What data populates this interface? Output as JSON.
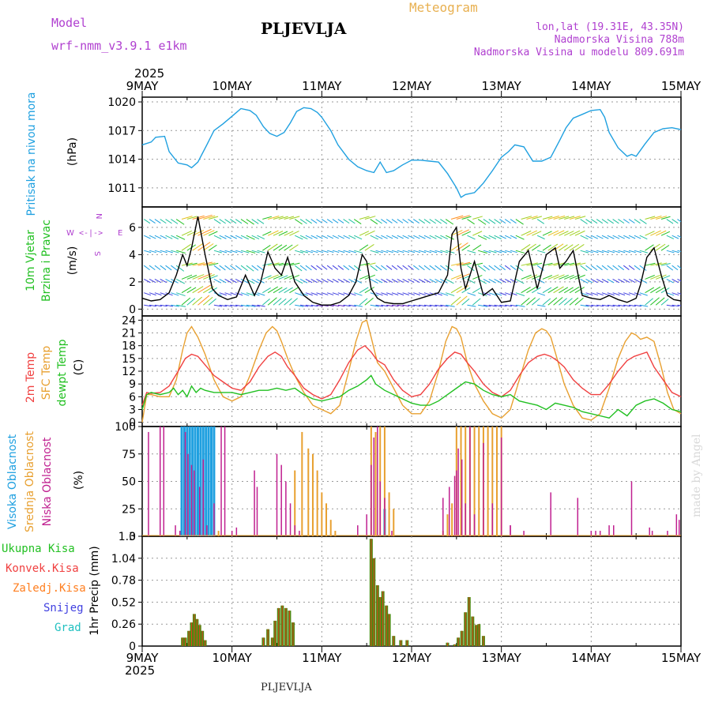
{
  "header": {
    "model_label": "Model",
    "model_name": "wrf-nmm_v3.9.1 e1km",
    "station": "PLJEVLJA",
    "meteogram": "Meteogram",
    "lonlat": "lon,lat (19.31E, 43.35N)",
    "altitude": "Nadmorska Visina 788m",
    "model_altitude": "Nadmorska Visina u modelu 809.691m",
    "year_top": "2025",
    "year_bottom": "2025",
    "footer_station": "PLJEVLJA",
    "credit": "made by Angel"
  },
  "colors": {
    "pressure": "#1fa0e0",
    "wind_label": "#22c022",
    "compass": "#b040d0",
    "temp2m": "#f04040",
    "sfc": "#e8a030",
    "dew": "#22c022",
    "cloud_high": "#1fa0e0",
    "cloud_mid": "#e8a030",
    "cloud_low": "#c02090",
    "precip_total": "#22c022",
    "precip_conv": "#f04040",
    "precip_frz": "#ff7f20",
    "precip_snow": "#4040e0",
    "precip_grad": "#20c0c0",
    "header_purple": "#b040d0",
    "header_orange": "#e8b050"
  },
  "x_axis": {
    "tick_labels": [
      "9MAY",
      "10MAY",
      "11MAY",
      "12MAY",
      "13MAY",
      "14MAY",
      "15MAY"
    ],
    "range_days": [
      0,
      6
    ]
  },
  "panels": {
    "pressure": {
      "title": "Pritisak na nivou mora",
      "unit": "(hPa)",
      "yticks": [
        "1011",
        "1014",
        "1017",
        "1020"
      ]
    },
    "wind": {
      "title1": "10m Vjetar",
      "title2": "Brzina i Pravac",
      "unit": "(m/s)",
      "yticks": [
        "0",
        "2",
        "4",
        "6"
      ],
      "compass_w": "W",
      "compass_e": "E",
      "compass_n": "N",
      "compass_s": "S",
      "compass_arrows": "<-|->"
    },
    "temp": {
      "label_2m": "2m Temp",
      "label_sfc": "SFC Temp",
      "label_dew": "dewpt Temp",
      "unit": "(C)",
      "yticks": [
        "0",
        "3",
        "6",
        "9",
        "12",
        "15",
        "18",
        "21",
        "24"
      ]
    },
    "cloud": {
      "label_high": "Visoka Oblacnost",
      "label_mid": "Srednja Oblacnost",
      "label_low": "Niska Oblacnost",
      "unit": "(%)",
      "yticks": [
        "0",
        "25",
        "50",
        "75",
        "100"
      ]
    },
    "precip": {
      "label_total": "Ukupna Kisa",
      "label_conv": "Konvek.Kisa",
      "label_frz": "Zaledj.Kisa",
      "label_snow": "Snijeg",
      "label_grad": "Grad",
      "unit": "1hr Precip (mm)",
      "yticks": [
        "0",
        "0.26",
        "0.52",
        "0.78",
        "1.04",
        "1.3"
      ]
    }
  },
  "chart_data": [
    {
      "type": "line",
      "name": "pressure",
      "ylim": [
        1009,
        1020.5
      ],
      "x": [
        0,
        0.1,
        0.15,
        0.25,
        0.3,
        0.4,
        0.5,
        0.55,
        0.62,
        0.72,
        0.8,
        0.9,
        1.0,
        1.1,
        1.2,
        1.27,
        1.35,
        1.42,
        1.5,
        1.58,
        1.65,
        1.72,
        1.8,
        1.88,
        1.95,
        2.0,
        2.1,
        2.18,
        2.3,
        2.4,
        2.5,
        2.58,
        2.65,
        2.72,
        2.8,
        2.9,
        3.0,
        3.1,
        3.2,
        3.3,
        3.4,
        3.5,
        3.55,
        3.6,
        3.7,
        3.8,
        3.9,
        4.0,
        4.08,
        4.15,
        4.25,
        4.35,
        4.45,
        4.55,
        4.65,
        4.72,
        4.8,
        4.9,
        5.0,
        5.1,
        5.15,
        5.2,
        5.3,
        5.4,
        5.45,
        5.5,
        5.6,
        5.7,
        5.8,
        5.9,
        6.0
      ],
      "values": [
        1015.5,
        1015.8,
        1016.3,
        1016.4,
        1014.8,
        1013.6,
        1013.4,
        1013.1,
        1013.7,
        1015.5,
        1017.0,
        1017.7,
        1018.5,
        1019.3,
        1019.1,
        1018.6,
        1017.4,
        1016.7,
        1016.4,
        1016.8,
        1017.8,
        1019.0,
        1019.4,
        1019.3,
        1018.9,
        1018.4,
        1017.0,
        1015.5,
        1014.0,
        1013.2,
        1012.8,
        1012.6,
        1013.7,
        1012.6,
        1012.8,
        1013.4,
        1013.9,
        1013.9,
        1013.8,
        1013.7,
        1012.5,
        1011.0,
        1010.0,
        1010.3,
        1010.5,
        1011.5,
        1012.8,
        1014.2,
        1014.8,
        1015.5,
        1015.3,
        1013.8,
        1013.8,
        1014.2,
        1016.0,
        1017.3,
        1018.3,
        1018.7,
        1019.1,
        1019.2,
        1018.4,
        1016.8,
        1015.2,
        1014.3,
        1014.5,
        1014.3,
        1015.6,
        1016.8,
        1017.2,
        1017.3,
        1017.1
      ]
    },
    {
      "type": "line",
      "name": "wind",
      "ylim": [
        -0.5,
        7.5
      ],
      "x": [
        0,
        0.1,
        0.2,
        0.3,
        0.38,
        0.45,
        0.5,
        0.55,
        0.62,
        0.7,
        0.78,
        0.85,
        0.95,
        1.05,
        1.15,
        1.25,
        1.32,
        1.4,
        1.48,
        1.55,
        1.62,
        1.7,
        1.8,
        1.9,
        2.0,
        2.1,
        2.2,
        2.3,
        2.38,
        2.45,
        2.5,
        2.55,
        2.62,
        2.7,
        2.8,
        2.9,
        3.0,
        3.1,
        3.2,
        3.3,
        3.4,
        3.45,
        3.5,
        3.55,
        3.6,
        3.7,
        3.8,
        3.9,
        4.0,
        4.1,
        4.2,
        4.3,
        4.4,
        4.5,
        4.6,
        4.65,
        4.72,
        4.8,
        4.9,
        5.0,
        5.1,
        5.2,
        5.3,
        5.4,
        5.5,
        5.55,
        5.62,
        5.7,
        5.78,
        5.85,
        5.92,
        6.0
      ],
      "values": [
        0.8,
        0.6,
        0.7,
        1.2,
        2.5,
        4.0,
        3.2,
        4.5,
        6.8,
        4.0,
        1.5,
        1.0,
        0.7,
        0.9,
        2.5,
        1.0,
        2.0,
        4.2,
        3.0,
        2.5,
        3.8,
        2.0,
        1.0,
        0.5,
        0.3,
        0.3,
        0.5,
        1.0,
        2.0,
        4.0,
        3.5,
        1.5,
        0.8,
        0.5,
        0.4,
        0.4,
        0.6,
        0.8,
        1.0,
        1.2,
        2.5,
        5.5,
        6.0,
        3.0,
        1.5,
        3.5,
        1.0,
        1.5,
        0.5,
        0.6,
        3.5,
        4.3,
        1.5,
        4.0,
        4.5,
        3.0,
        3.5,
        4.3,
        1.0,
        0.8,
        0.7,
        1.0,
        0.7,
        0.5,
        0.8,
        1.8,
        3.8,
        4.5,
        2.5,
        1.0,
        0.7,
        0.6
      ]
    },
    {
      "type": "line",
      "name": "2m Temp",
      "ylim": [
        -1,
        25
      ],
      "x": [
        0,
        0.05,
        0.1,
        0.2,
        0.3,
        0.4,
        0.48,
        0.55,
        0.62,
        0.7,
        0.8,
        0.9,
        1.0,
        1.1,
        1.2,
        1.3,
        1.4,
        1.48,
        1.55,
        1.62,
        1.7,
        1.8,
        1.9,
        2.0,
        2.1,
        2.2,
        2.3,
        2.4,
        2.48,
        2.55,
        2.62,
        2.7,
        2.8,
        2.9,
        3.0,
        3.1,
        3.2,
        3.3,
        3.4,
        3.48,
        3.55,
        3.62,
        3.7,
        3.8,
        3.9,
        4.0,
        4.1,
        4.2,
        4.3,
        4.4,
        4.48,
        4.55,
        4.62,
        4.7,
        4.8,
        4.9,
        5.0,
        5.1,
        5.2,
        5.3,
        5.4,
        5.48,
        5.55,
        5.62,
        5.7,
        5.8,
        5.9,
        6.0
      ],
      "values": [
        4.0,
        7.0,
        6.8,
        7.0,
        8.5,
        12.0,
        15.0,
        16.0,
        15.5,
        13.5,
        11.0,
        9.5,
        8.0,
        7.5,
        9.5,
        13.0,
        15.5,
        16.5,
        15.5,
        13.0,
        11.0,
        8.0,
        6.5,
        5.5,
        6.5,
        10.0,
        14.0,
        17.0,
        18.0,
        16.5,
        14.5,
        13.5,
        10.0,
        7.5,
        6.0,
        6.5,
        9.0,
        12.5,
        15.0,
        16.5,
        16.0,
        14.0,
        12.0,
        9.0,
        7.0,
        6.0,
        7.5,
        11.0,
        14.0,
        15.5,
        16.0,
        15.5,
        14.5,
        13.0,
        10.0,
        8.0,
        6.5,
        6.5,
        9.0,
        12.0,
        14.5,
        15.5,
        16.0,
        16.5,
        13.0,
        10.0,
        7.0,
        6.0
      ]
    },
    {
      "type": "line",
      "name": "SFC Temp",
      "ylim": [
        -1,
        25
      ],
      "x": [
        0,
        0.05,
        0.1,
        0.2,
        0.3,
        0.38,
        0.45,
        0.5,
        0.55,
        0.62,
        0.7,
        0.8,
        0.9,
        1.0,
        1.1,
        1.2,
        1.3,
        1.38,
        1.45,
        1.5,
        1.55,
        1.62,
        1.7,
        1.8,
        1.9,
        2.0,
        2.1,
        2.2,
        2.3,
        2.38,
        2.45,
        2.5,
        2.55,
        2.62,
        2.7,
        2.8,
        2.9,
        3.0,
        3.1,
        3.2,
        3.3,
        3.38,
        3.45,
        3.5,
        3.55,
        3.62,
        3.7,
        3.8,
        3.9,
        4.0,
        4.1,
        4.2,
        4.3,
        4.38,
        4.45,
        4.5,
        4.55,
        4.62,
        4.7,
        4.8,
        4.9,
        5.0,
        5.1,
        5.2,
        5.3,
        5.38,
        5.45,
        5.5,
        5.55,
        5.62,
        5.7,
        5.78,
        5.85,
        5.92,
        6.0
      ],
      "values": [
        0.0,
        6.5,
        6.5,
        6.0,
        6.0,
        10.0,
        17.0,
        21.0,
        22.5,
        20.0,
        16.0,
        10.0,
        6.0,
        5.0,
        6.0,
        11.0,
        17.0,
        21.0,
        22.5,
        21.5,
        19.0,
        15.0,
        11.0,
        7.0,
        4.0,
        3.0,
        2.0,
        4.0,
        12.0,
        19.0,
        23.5,
        24.0,
        20.0,
        14.0,
        12.0,
        8.0,
        4.0,
        2.0,
        2.0,
        5.0,
        12.0,
        19.0,
        22.5,
        22.0,
        20.0,
        14.0,
        9.0,
        5.0,
        2.0,
        1.0,
        3.0,
        10.0,
        17.0,
        21.0,
        22.0,
        21.5,
        20.0,
        15.0,
        9.0,
        4.0,
        1.0,
        0.5,
        2.0,
        8.0,
        15.0,
        19.0,
        21.0,
        20.5,
        19.5,
        20.0,
        19.0,
        13.0,
        7.0,
        3.0,
        2.0
      ]
    },
    {
      "type": "line",
      "name": "dewpt Temp",
      "ylim": [
        -1,
        25
      ],
      "x": [
        0,
        0.05,
        0.1,
        0.2,
        0.3,
        0.35,
        0.4,
        0.45,
        0.5,
        0.55,
        0.6,
        0.65,
        0.7,
        0.8,
        0.9,
        1.0,
        1.1,
        1.2,
        1.3,
        1.4,
        1.5,
        1.6,
        1.7,
        1.8,
        1.9,
        2.0,
        2.1,
        2.2,
        2.3,
        2.4,
        2.5,
        2.55,
        2.6,
        2.7,
        2.8,
        2.9,
        3.0,
        3.1,
        3.2,
        3.3,
        3.4,
        3.5,
        3.6,
        3.7,
        3.8,
        3.9,
        4.0,
        4.1,
        4.2,
        4.3,
        4.4,
        4.5,
        4.6,
        4.7,
        4.8,
        4.9,
        5.0,
        5.1,
        5.2,
        5.3,
        5.4,
        5.5,
        5.6,
        5.7,
        5.8,
        5.9,
        6.0
      ],
      "values": [
        3.0,
        6.5,
        7.0,
        6.5,
        7.0,
        8.0,
        6.5,
        7.5,
        6.0,
        8.5,
        7.0,
        8.0,
        7.5,
        7.0,
        7.0,
        7.0,
        6.5,
        7.0,
        7.5,
        7.5,
        8.0,
        7.5,
        8.0,
        6.5,
        5.5,
        5.0,
        5.5,
        6.0,
        7.5,
        8.5,
        10.0,
        11.0,
        9.0,
        7.5,
        6.5,
        5.5,
        4.5,
        4.0,
        4.0,
        5.0,
        6.5,
        8.0,
        9.5,
        9.0,
        7.5,
        6.5,
        6.0,
        6.5,
        5.0,
        4.5,
        4.0,
        3.0,
        4.5,
        4.0,
        3.5,
        2.5,
        2.0,
        1.5,
        1.0,
        3.0,
        1.5,
        4.0,
        5.0,
        5.5,
        4.5,
        3.0,
        2.5
      ]
    },
    {
      "type": "bar",
      "name": "cloud",
      "ylim": [
        0,
        100
      ],
      "low_x": [
        0.07,
        0.2,
        0.24,
        0.37,
        0.42,
        0.48,
        0.51,
        0.55,
        0.58,
        0.64,
        0.68,
        0.72,
        0.8,
        0.88,
        0.92,
        1.0,
        1.05,
        1.25,
        1.28,
        1.5,
        1.55,
        1.6,
        1.65,
        1.7,
        1.75,
        2.4,
        2.5,
        2.55,
        2.58,
        2.62,
        2.65,
        2.7,
        2.78,
        3.35,
        3.42,
        3.48,
        3.5,
        3.52,
        3.56,
        3.6,
        3.65,
        3.7,
        3.8,
        3.9,
        4.0,
        4.1,
        4.1,
        4.25,
        4.55,
        4.85,
        5.0,
        5.05,
        5.1,
        5.2,
        5.25,
        5.45,
        5.65,
        5.68,
        5.85,
        5.95,
        5.98
      ],
      "low_v": [
        95,
        100,
        100,
        10,
        5,
        95,
        75,
        65,
        60,
        45,
        70,
        10,
        30,
        100,
        100,
        5,
        8,
        60,
        45,
        75,
        65,
        50,
        30,
        10,
        5,
        10,
        20,
        65,
        90,
        100,
        50,
        35,
        5,
        35,
        45,
        55,
        60,
        80,
        70,
        30,
        100,
        20,
        85,
        30,
        90,
        10,
        10,
        5,
        40,
        35,
        5,
        5,
        5,
        10,
        10,
        50,
        8,
        5,
        5,
        20,
        15
      ],
      "mid_x": [
        0.85,
        1.7,
        1.78,
        1.85,
        1.9,
        1.95,
        2.0,
        2.05,
        2.1,
        2.15,
        2.55,
        2.6,
        2.65,
        2.7,
        2.75,
        2.8,
        3.35,
        3.4,
        3.45,
        3.5,
        3.55,
        3.6,
        3.65,
        3.7,
        3.75,
        3.8,
        3.85,
        3.9,
        3.95,
        4.0
      ],
      "mid_v": [
        5,
        60,
        95,
        80,
        75,
        60,
        40,
        30,
        15,
        5,
        100,
        95,
        100,
        100,
        40,
        25,
        5,
        20,
        30,
        100,
        100,
        100,
        100,
        100,
        100,
        100,
        100,
        100,
        100,
        100
      ],
      "high_x": [
        0.44,
        0.47,
        0.5,
        0.53,
        0.56,
        0.59,
        0.62,
        0.65,
        0.68,
        0.71,
        0.74,
        0.77,
        0.8,
        2.7
      ],
      "high_v": [
        100,
        100,
        100,
        100,
        100,
        100,
        100,
        100,
        100,
        100,
        100,
        100,
        100,
        25
      ]
    },
    {
      "type": "bar",
      "name": "precip",
      "ylim": [
        0,
        1.3
      ],
      "x": [
        0.45,
        0.48,
        0.52,
        0.55,
        0.58,
        0.61,
        0.64,
        0.67,
        0.7,
        1.35,
        1.4,
        1.45,
        1.48,
        1.52,
        1.56,
        1.6,
        1.64,
        1.68,
        2.55,
        2.58,
        2.62,
        2.65,
        2.68,
        2.72,
        2.75,
        2.8,
        2.88,
        2.95,
        3.4,
        3.48,
        3.52,
        3.56,
        3.6,
        3.64,
        3.68,
        3.72,
        3.75,
        3.8
      ],
      "values": [
        0.1,
        0.1,
        0.18,
        0.28,
        0.38,
        0.32,
        0.25,
        0.18,
        0.07,
        0.1,
        0.2,
        0.1,
        0.3,
        0.45,
        0.48,
        0.45,
        0.42,
        0.28,
        1.27,
        1.04,
        0.72,
        0.58,
        0.65,
        0.48,
        0.38,
        0.12,
        0.07,
        0.07,
        0.04,
        0.02,
        0.1,
        0.18,
        0.4,
        0.58,
        0.35,
        0.25,
        0.26,
        0.12
      ]
    }
  ]
}
